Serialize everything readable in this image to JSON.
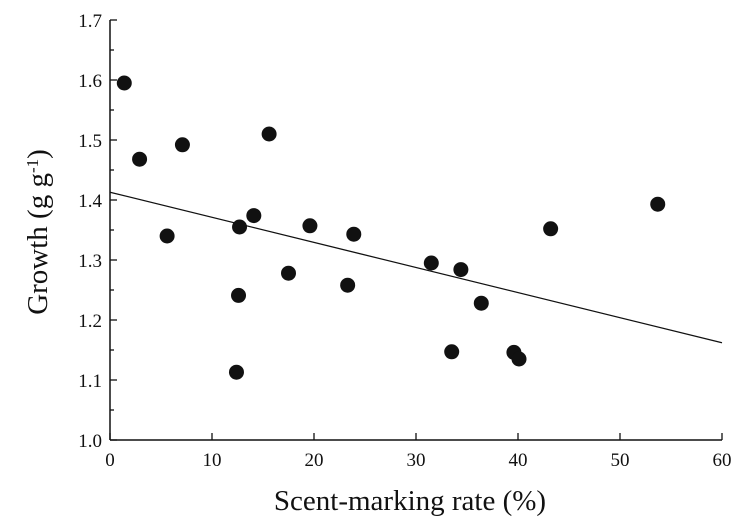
{
  "chart_data": {
    "type": "scatter",
    "xlabel": "Scent-marking rate (%)",
    "ylabel_main": "Growth (g g",
    "ylabel_sup": "-1",
    "ylabel_close": ")",
    "xlim": [
      0,
      60
    ],
    "ylim": [
      1.0,
      1.7
    ],
    "x_ticks": [
      0,
      10,
      20,
      30,
      40,
      50,
      60
    ],
    "y_ticks": [
      1.0,
      1.1,
      1.2,
      1.3,
      1.4,
      1.5,
      1.6,
      1.7
    ],
    "x_tick_labels": [
      "0",
      "10",
      "20",
      "30",
      "40",
      "50",
      "60"
    ],
    "y_tick_labels": [
      "1.0",
      "1.1",
      "1.2",
      "1.3",
      "1.4",
      "1.5",
      "1.6",
      "1.7"
    ],
    "grid": false,
    "legend": "none",
    "points": [
      {
        "x": 1.4,
        "y": 1.595
      },
      {
        "x": 2.9,
        "y": 1.468
      },
      {
        "x": 5.6,
        "y": 1.34
      },
      {
        "x": 7.1,
        "y": 1.492
      },
      {
        "x": 12.4,
        "y": 1.113
      },
      {
        "x": 12.6,
        "y": 1.241
      },
      {
        "x": 12.7,
        "y": 1.355
      },
      {
        "x": 14.1,
        "y": 1.374
      },
      {
        "x": 15.6,
        "y": 1.51
      },
      {
        "x": 17.5,
        "y": 1.278
      },
      {
        "x": 19.6,
        "y": 1.357
      },
      {
        "x": 23.3,
        "y": 1.258
      },
      {
        "x": 23.9,
        "y": 1.343
      },
      {
        "x": 31.5,
        "y": 1.295
      },
      {
        "x": 33.5,
        "y": 1.147
      },
      {
        "x": 34.4,
        "y": 1.284
      },
      {
        "x": 36.4,
        "y": 1.228
      },
      {
        "x": 39.6,
        "y": 1.146
      },
      {
        "x": 40.1,
        "y": 1.135
      },
      {
        "x": 43.2,
        "y": 1.352
      },
      {
        "x": 53.7,
        "y": 1.393
      }
    ],
    "trend_line": {
      "x": [
        0,
        60
      ],
      "y": [
        1.413,
        1.162
      ]
    },
    "colors": {
      "points": "#111111",
      "line": "#111111",
      "axes": "#111111"
    }
  }
}
